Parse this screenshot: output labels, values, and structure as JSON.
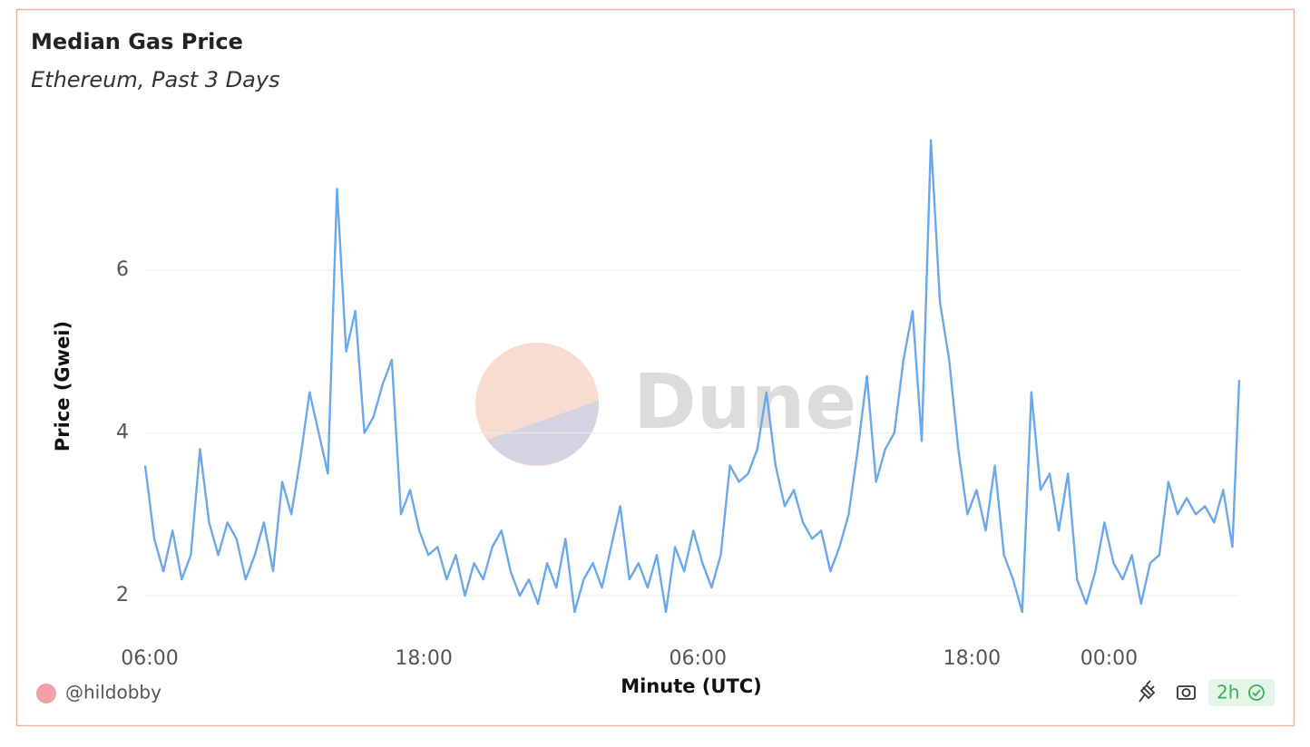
{
  "chart_data": {
    "type": "line",
    "title": "Median Gas Price",
    "subtitle": "Ethereum, Past 3 Days",
    "x_label": "Minute (UTC)",
    "y_label": "Price (Gwei)",
    "watermark": "Dune",
    "author": "@hildobby",
    "refresh": "2h",
    "xlim": [
      0,
      47.9
    ],
    "xticks": [
      {
        "value": 0,
        "label": "06:00"
      },
      {
        "value": 12,
        "label": "18:00"
      },
      {
        "value": 24,
        "label": "06:00"
      },
      {
        "value": 36,
        "label": "18:00"
      },
      {
        "value": 42,
        "label": "00:00"
      }
    ],
    "ylim": [
      1.5,
      7.7
    ],
    "yticks": [
      2,
      4,
      6
    ],
    "grid": true,
    "x": [
      0,
      0.4,
      0.8,
      1.2,
      1.6,
      2,
      2.4,
      2.8,
      3.2,
      3.6,
      4,
      4.4,
      4.8,
      5.2,
      5.6,
      6,
      6.4,
      6.8,
      7.2,
      7.6,
      8,
      8.4,
      8.8,
      9.2,
      9.6,
      10,
      10.4,
      10.8,
      11.2,
      11.6,
      12,
      12.4,
      12.8,
      13.2,
      13.6,
      14,
      14.4,
      14.8,
      15.2,
      15.6,
      16,
      16.4,
      16.8,
      17.2,
      17.6,
      18,
      18.4,
      18.8,
      19.2,
      19.6,
      20,
      20.4,
      20.8,
      21.2,
      21.6,
      22,
      22.4,
      22.8,
      23.2,
      23.6,
      24,
      24.4,
      24.8,
      25.2,
      25.6,
      26,
      26.4,
      26.8,
      27.2,
      27.6,
      28,
      28.4,
      28.8,
      29.2,
      29.6,
      30,
      30.4,
      30.8,
      31.2,
      31.6,
      32,
      32.4,
      32.8,
      33.2,
      33.6,
      34,
      34.4,
      34.8,
      35.2,
      35.6,
      36,
      36.4,
      36.8,
      37.2,
      37.6,
      38,
      38.4,
      38.8,
      39.2,
      39.6,
      40,
      40.4,
      40.8,
      41.2,
      41.6,
      42,
      42.4,
      42.8,
      43.2,
      43.6,
      44,
      44.4,
      44.8,
      45.2,
      45.6,
      46,
      46.4,
      46.8,
      47.2,
      47.6,
      47.9
    ],
    "series": [
      {
        "name": "Median Gas Price",
        "color": "#6aa8ec",
        "values": [
          3.6,
          2.7,
          2.3,
          2.8,
          2.2,
          2.5,
          3.8,
          2.9,
          2.5,
          2.9,
          2.7,
          2.2,
          2.5,
          2.9,
          2.3,
          3.4,
          3.0,
          3.7,
          4.5,
          4.0,
          3.5,
          7.0,
          5.0,
          5.5,
          4.0,
          4.2,
          4.6,
          4.9,
          3.0,
          3.3,
          2.8,
          2.5,
          2.6,
          2.2,
          2.5,
          2.0,
          2.4,
          2.2,
          2.6,
          2.8,
          2.3,
          2.0,
          2.2,
          1.9,
          2.4,
          2.1,
          2.7,
          1.8,
          2.2,
          2.4,
          2.1,
          2.6,
          3.1,
          2.2,
          2.4,
          2.1,
          2.5,
          1.8,
          2.6,
          2.3,
          2.8,
          2.4,
          2.1,
          2.5,
          3.6,
          3.4,
          3.5,
          3.8,
          4.5,
          3.6,
          3.1,
          3.3,
          2.9,
          2.7,
          2.8,
          2.3,
          2.6,
          3.0,
          3.8,
          4.7,
          3.4,
          3.8,
          4.0,
          4.9,
          5.5,
          3.9,
          7.6,
          5.6,
          4.9,
          3.8,
          3.0,
          3.3,
          2.8,
          3.6,
          2.5,
          2.2,
          1.8,
          4.5,
          3.3,
          3.5,
          2.8,
          3.5,
          2.2,
          1.9,
          2.3,
          2.9,
          2.4,
          2.2,
          2.5,
          1.9,
          2.4,
          2.5,
          3.4,
          3.0,
          3.2,
          3.0,
          3.1,
          2.9,
          3.3,
          2.6,
          4.65
        ]
      }
    ]
  }
}
